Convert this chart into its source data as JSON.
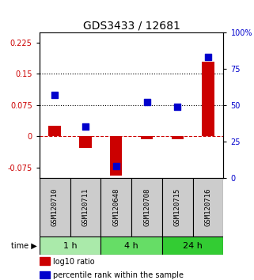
{
  "title": "GDS3433 / 12681",
  "samples": [
    "GSM120710",
    "GSM120711",
    "GSM120648",
    "GSM120708",
    "GSM120715",
    "GSM120716"
  ],
  "groups": [
    {
      "label": "1 h",
      "indices": [
        0,
        1
      ],
      "color": "#aaeaaa"
    },
    {
      "label": "4 h",
      "indices": [
        2,
        3
      ],
      "color": "#66dd66"
    },
    {
      "label": "24 h",
      "indices": [
        4,
        5
      ],
      "color": "#33cc33"
    }
  ],
  "log10_ratio": [
    0.025,
    -0.028,
    -0.095,
    -0.008,
    -0.008,
    0.18
  ],
  "percentile_rank_pct": [
    57,
    35,
    8,
    52,
    49,
    83
  ],
  "ylim_left": [
    -0.1,
    0.25
  ],
  "ylim_right": [
    0,
    100
  ],
  "yticks_left": [
    -0.075,
    0,
    0.075,
    0.15,
    0.225
  ],
  "yticks_right": [
    0,
    25,
    50,
    75,
    100
  ],
  "hlines": [
    0.075,
    0.15
  ],
  "bar_color": "#cc0000",
  "dot_color": "#0000cc",
  "bar_width": 0.4,
  "dot_size": 28,
  "zero_line_color": "#cc0000",
  "zero_line_style": "--",
  "hline_style": ":",
  "hline_color": "black",
  "left_label_color": "#cc0000",
  "right_label_color": "#0000cc",
  "sample_box_color": "#cccccc",
  "font_size_title": 10,
  "font_size_ticks": 7,
  "font_size_legend": 7,
  "font_size_sample": 6.5,
  "font_size_group": 8,
  "font_size_time": 7
}
